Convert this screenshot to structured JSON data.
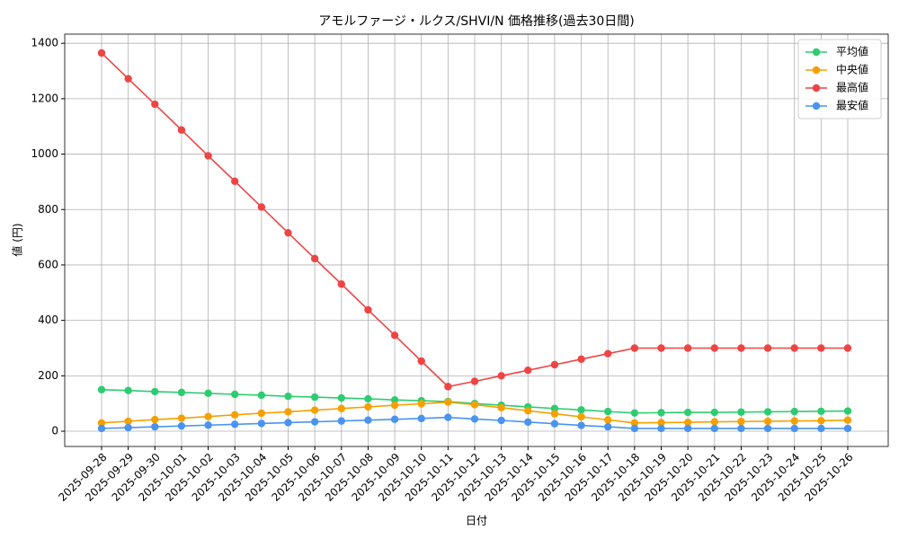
{
  "chart_data": {
    "type": "line",
    "title": "アモルファージ・ルクス/SHVI/N 価格推移(過去30日間)",
    "x_label": "日付",
    "y_label": "値 (円)",
    "x": [
      "2025-09-28",
      "2025-09-29",
      "2025-09-30",
      "2025-10-01",
      "2025-10-02",
      "2025-10-03",
      "2025-10-04",
      "2025-10-05",
      "2025-10-06",
      "2025-10-07",
      "2025-10-08",
      "2025-10-09",
      "2025-10-10",
      "2025-10-11",
      "2025-10-12",
      "2025-10-13",
      "2025-10-14",
      "2025-10-15",
      "2025-10-16",
      "2025-10-17",
      "2025-10-18",
      "2025-10-19",
      "2025-10-20",
      "2025-10-21",
      "2025-10-22",
      "2025-10-23",
      "2025-10-24",
      "2025-10-25",
      "2025-10-26"
    ],
    "series": [
      {
        "name": "平均値",
        "color": "#2ecc71",
        "values": [
          150,
          147,
          143,
          140,
          137,
          133,
          130,
          126,
          123,
          120,
          117,
          113,
          110,
          107,
          100,
          94,
          88,
          82,
          77,
          71,
          66,
          67,
          68,
          68,
          69,
          70,
          71,
          72,
          73
        ]
      },
      {
        "name": "中央値",
        "color": "#f5a000",
        "values": [
          30,
          36,
          42,
          47,
          53,
          59,
          65,
          70,
          76,
          82,
          88,
          94,
          99,
          105,
          96,
          85,
          74,
          63,
          52,
          41,
          30,
          31,
          32,
          34,
          35,
          36,
          37,
          38,
          40
        ]
      },
      {
        "name": "最高値",
        "color": "#ef4444",
        "values": [
          1365,
          1272,
          1180,
          1087,
          994,
          902,
          809,
          716,
          623,
          531,
          438,
          346,
          253,
          161,
          180,
          200,
          220,
          240,
          260,
          280,
          300,
          300,
          300,
          300,
          300,
          300,
          300,
          300,
          300
        ]
      },
      {
        "name": "最安値",
        "color": "#4a94f0",
        "values": [
          10,
          13,
          16,
          19,
          22,
          25,
          28,
          31,
          34,
          37,
          40,
          43,
          46,
          50,
          44,
          39,
          33,
          27,
          21,
          16,
          10,
          10,
          10,
          10,
          10,
          10,
          10,
          10,
          10
        ]
      }
    ],
    "ylim": [
      -55,
      1433
    ],
    "yticks": [
      0,
      200,
      400,
      600,
      800,
      1000,
      1200,
      1400
    ],
    "grid": true,
    "legend": "upper right"
  }
}
